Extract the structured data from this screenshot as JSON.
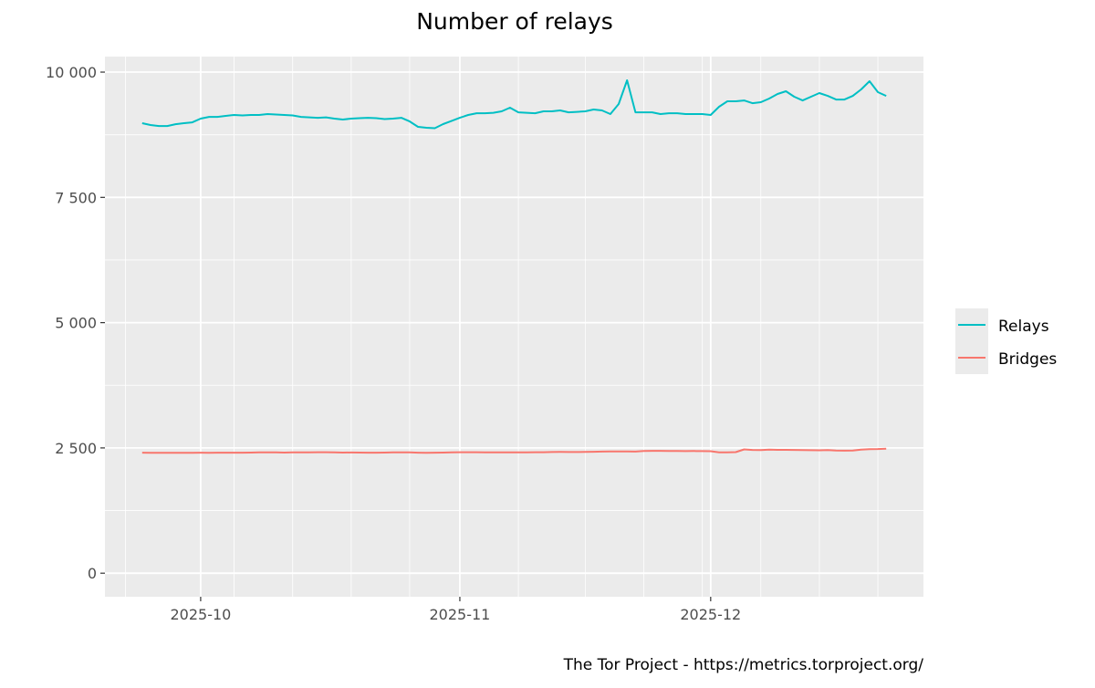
{
  "chart_data": {
    "type": "line",
    "title": "Number of relays",
    "xlabel": "",
    "ylabel": "",
    "caption": "The Tor Project - https://metrics.torproject.org/",
    "ylim": [
      -470,
      10310
    ],
    "y_ticks": [
      0,
      2500,
      5000,
      7500,
      10000
    ],
    "y_tick_labels": [
      "0",
      "2 500",
      "5 000",
      "7 500",
      "10 000"
    ],
    "x_ticks": [
      "2025-10-01",
      "2025-11-01",
      "2025-12-01"
    ],
    "x_tick_labels": [
      "2025-10",
      "2025-11",
      "2025-12"
    ],
    "grid": true,
    "legend_position": "right",
    "x": [
      "2025-09-24",
      "2025-09-25",
      "2025-09-26",
      "2025-09-27",
      "2025-09-28",
      "2025-09-29",
      "2025-09-30",
      "2025-10-01",
      "2025-10-02",
      "2025-10-03",
      "2025-10-04",
      "2025-10-05",
      "2025-10-06",
      "2025-10-07",
      "2025-10-08",
      "2025-10-09",
      "2025-10-10",
      "2025-10-11",
      "2025-10-12",
      "2025-10-13",
      "2025-10-14",
      "2025-10-15",
      "2025-10-16",
      "2025-10-17",
      "2025-10-18",
      "2025-10-19",
      "2025-10-20",
      "2025-10-21",
      "2025-10-22",
      "2025-10-23",
      "2025-10-24",
      "2025-10-25",
      "2025-10-26",
      "2025-10-27",
      "2025-10-28",
      "2025-10-29",
      "2025-10-30",
      "2025-10-31",
      "2025-11-01",
      "2025-11-02",
      "2025-11-03",
      "2025-11-04",
      "2025-11-05",
      "2025-11-06",
      "2025-11-07",
      "2025-11-08",
      "2025-11-09",
      "2025-11-10",
      "2025-11-11",
      "2025-11-12",
      "2025-11-13",
      "2025-11-14",
      "2025-11-15",
      "2025-11-16",
      "2025-11-17",
      "2025-11-18",
      "2025-11-19",
      "2025-11-20",
      "2025-11-21",
      "2025-11-22",
      "2025-11-23",
      "2025-11-24",
      "2025-11-25",
      "2025-11-26",
      "2025-11-27",
      "2025-11-28",
      "2025-11-29",
      "2025-11-30",
      "2025-12-01",
      "2025-12-02",
      "2025-12-03",
      "2025-12-04",
      "2025-12-05",
      "2025-12-06",
      "2025-12-07",
      "2025-12-08",
      "2025-12-09",
      "2025-12-10",
      "2025-12-11",
      "2025-12-12",
      "2025-12-13",
      "2025-12-14",
      "2025-12-15",
      "2025-12-16",
      "2025-12-17",
      "2025-12-18",
      "2025-12-19",
      "2025-12-20",
      "2025-12-21",
      "2025-12-22"
    ],
    "series": [
      {
        "name": "Relays",
        "color": "#00BFC4",
        "values": [
          8980,
          8944,
          8925,
          8925,
          8960,
          8980,
          8998,
          9071,
          9107,
          9107,
          9126,
          9144,
          9135,
          9144,
          9144,
          9162,
          9153,
          9144,
          9135,
          9107,
          9098,
          9089,
          9098,
          9071,
          9053,
          9071,
          9080,
          9089,
          9080,
          9062,
          9071,
          9089,
          9016,
          8907,
          8889,
          8880,
          8962,
          9025,
          9089,
          9144,
          9180,
          9180,
          9189,
          9217,
          9290,
          9198,
          9189,
          9180,
          9217,
          9217,
          9235,
          9198,
          9207,
          9217,
          9253,
          9235,
          9162,
          9363,
          9836,
          9198,
          9198,
          9198,
          9162,
          9180,
          9180,
          9162,
          9162,
          9162,
          9144,
          9308,
          9417,
          9417,
          9435,
          9380,
          9399,
          9472,
          9563,
          9618,
          9508,
          9435,
          9508,
          9581,
          9526,
          9453,
          9453,
          9526,
          9654,
          9818,
          9600,
          9526
        ]
      },
      {
        "name": "Bridges",
        "color": "#F8766D",
        "values": [
          2405,
          2403,
          2404,
          2402,
          2403,
          2404,
          2404,
          2405,
          2404,
          2405,
          2406,
          2405,
          2406,
          2407,
          2412,
          2413,
          2410,
          2408,
          2410,
          2412,
          2413,
          2415,
          2415,
          2410,
          2408,
          2409,
          2407,
          2405,
          2405,
          2407,
          2410,
          2412,
          2410,
          2406,
          2402,
          2405,
          2408,
          2412,
          2414,
          2414,
          2414,
          2413,
          2412,
          2410,
          2412,
          2413,
          2412,
          2414,
          2415,
          2418,
          2420,
          2418,
          2418,
          2420,
          2424,
          2428,
          2430,
          2430,
          2430,
          2428,
          2440,
          2442,
          2442,
          2440,
          2438,
          2436,
          2438,
          2436,
          2434,
          2412,
          2410,
          2416,
          2470,
          2460,
          2458,
          2465,
          2462,
          2462,
          2460,
          2458,
          2455,
          2452,
          2458,
          2448,
          2446,
          2448,
          2465,
          2475,
          2478,
          2485
        ]
      }
    ]
  }
}
